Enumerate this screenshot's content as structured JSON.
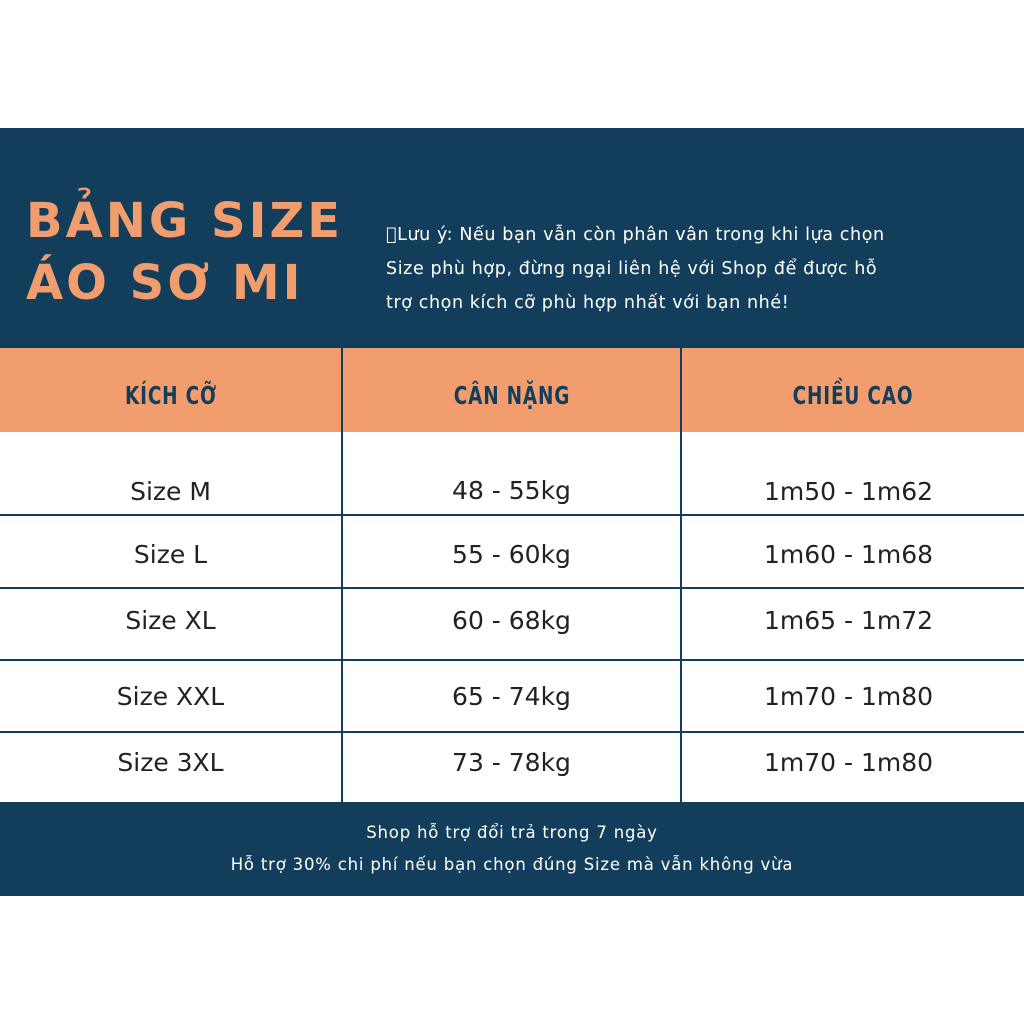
{
  "header": {
    "title_line1": "BẢNG SIZE",
    "title_line2": "ÁO SƠ MI",
    "note_lines": [
      "\u0000Lưu ý: Nếu bạn vẫn còn phân vân trong khi lựa chọn",
      "Size phù hợp, đừng ngại liên hệ với Shop để được hỗ",
      "trợ chọn kích cỡ phù hợp nhất với bạn nhé!"
    ]
  },
  "table": {
    "columns": [
      "KÍCH CỠ",
      "CÂN NẶNG",
      "CHIỀU CAO"
    ],
    "rows": [
      [
        "Size M",
        "48 - 55kg",
        "1m50 - 1m62"
      ],
      [
        "Size L",
        "55 - 60kg",
        "1m60 - 1m68"
      ],
      [
        "Size XL",
        "60 - 68kg",
        "1m65 - 1m72"
      ],
      [
        "Size XXL",
        "65 - 74kg",
        "1m70 - 1m80"
      ],
      [
        "Size 3XL",
        "73 - 78kg",
        "1m70 - 1m80"
      ]
    ]
  },
  "footer": {
    "lines": [
      "Shop hỗ trợ đổi trả trong 7 ngày",
      "Hỗ trợ 30% chi phí nếu bạn chọn đúng Size mà vẫn không vừa"
    ]
  },
  "colors": {
    "navy": "#133e5b",
    "peach": "#f29d6e",
    "text": "#222222"
  }
}
